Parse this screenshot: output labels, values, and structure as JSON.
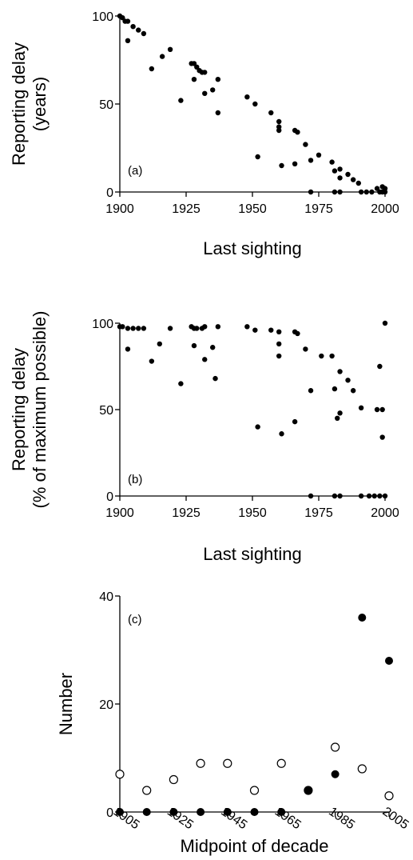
{
  "chart_data": [
    {
      "type": "scatter",
      "panel_label": "(a)",
      "xlabel": "Last sighting",
      "ylabel_lines": [
        "Reporting delay",
        "(years)"
      ],
      "xlim": [
        1900,
        2000
      ],
      "ylim": [
        0,
        100
      ],
      "xticks": [
        "1900",
        "1925",
        "1950",
        "1975",
        "2000"
      ],
      "yticks": [
        "0",
        "50",
        "100"
      ],
      "grid": false,
      "series": [
        {
          "marker": "filled",
          "points": [
            [
              1900,
              100
            ],
            [
              1901,
              99
            ],
            [
              1902,
              97
            ],
            [
              1903,
              97
            ],
            [
              1903,
              86
            ],
            [
              1905,
              94
            ],
            [
              1907,
              92
            ],
            [
              1909,
              90
            ],
            [
              1912,
              70
            ],
            [
              1916,
              77
            ],
            [
              1919,
              81
            ],
            [
              1923,
              52
            ],
            [
              1927,
              73
            ],
            [
              1928,
              73
            ],
            [
              1928,
              64
            ],
            [
              1929,
              71
            ],
            [
              1930,
              69
            ],
            [
              1931,
              68
            ],
            [
              1932,
              56
            ],
            [
              1932,
              68
            ],
            [
              1935,
              58
            ],
            [
              1937,
              64
            ],
            [
              1937,
              45
            ],
            [
              1948,
              54
            ],
            [
              1951,
              50
            ],
            [
              1952,
              20
            ],
            [
              1957,
              45
            ],
            [
              1960,
              40
            ],
            [
              1960,
              37
            ],
            [
              1960,
              35
            ],
            [
              1961,
              15
            ],
            [
              1966,
              35
            ],
            [
              1967,
              34
            ],
            [
              1966,
              16
            ],
            [
              1970,
              27
            ],
            [
              1972,
              18
            ],
            [
              1972,
              0
            ],
            [
              1975,
              21
            ],
            [
              1980,
              17
            ],
            [
              1981,
              12
            ],
            [
              1981,
              0
            ],
            [
              1983,
              13
            ],
            [
              1983,
              8
            ],
            [
              1983,
              0
            ],
            [
              1986,
              10
            ],
            [
              1988,
              7
            ],
            [
              1990,
              5
            ],
            [
              1991,
              0
            ],
            [
              1993,
              0
            ],
            [
              1995,
              0
            ],
            [
              1997,
              2
            ],
            [
              1998,
              0
            ],
            [
              1999,
              3
            ],
            [
              1999,
              0
            ],
            [
              2000,
              2
            ],
            [
              2000,
              0
            ]
          ]
        }
      ]
    },
    {
      "type": "scatter",
      "panel_label": "(b)",
      "xlabel": "Last sighting",
      "ylabel_lines": [
        "Reporting delay",
        "(% of maximum possible)"
      ],
      "xlim": [
        1900,
        2000
      ],
      "ylim": [
        0,
        100
      ],
      "xticks": [
        "1900",
        "1925",
        "1950",
        "1975",
        "2000"
      ],
      "yticks": [
        "0",
        "50",
        "100"
      ],
      "grid": false,
      "series": [
        {
          "marker": "filled",
          "points": [
            [
              1900,
              98
            ],
            [
              1901,
              98
            ],
            [
              1903,
              97
            ],
            [
              1903,
              85
            ],
            [
              1905,
              97
            ],
            [
              1907,
              97
            ],
            [
              1909,
              97
            ],
            [
              1912,
              78
            ],
            [
              1915,
              88
            ],
            [
              1919,
              97
            ],
            [
              1923,
              65
            ],
            [
              1927,
              98
            ],
            [
              1928,
              97
            ],
            [
              1928,
              87
            ],
            [
              1929,
              97
            ],
            [
              1931,
              97
            ],
            [
              1932,
              79
            ],
            [
              1932,
              98
            ],
            [
              1935,
              86
            ],
            [
              1936,
              68
            ],
            [
              1937,
              98
            ],
            [
              1948,
              98
            ],
            [
              1951,
              96
            ],
            [
              1952,
              40
            ],
            [
              1957,
              96
            ],
            [
              1960,
              95
            ],
            [
              1960,
              88
            ],
            [
              1960,
              81
            ],
            [
              1961,
              36
            ],
            [
              1966,
              95
            ],
            [
              1967,
              94
            ],
            [
              1966,
              43
            ],
            [
              1970,
              85
            ],
            [
              1972,
              61
            ],
            [
              1972,
              0
            ],
            [
              1976,
              81
            ],
            [
              1980,
              81
            ],
            [
              1981,
              62
            ],
            [
              1981,
              0
            ],
            [
              1983,
              72
            ],
            [
              1983,
              48
            ],
            [
              1982,
              45
            ],
            [
              1983,
              0
            ],
            [
              1986,
              67
            ],
            [
              1988,
              61
            ],
            [
              1991,
              51
            ],
            [
              1991,
              0
            ],
            [
              1994,
              0
            ],
            [
              1997,
              50
            ],
            [
              1998,
              75
            ],
            [
              1998,
              0
            ],
            [
              1999,
              34
            ],
            [
              1999,
              50
            ],
            [
              2000,
              100
            ],
            [
              2000,
              0
            ],
            [
              1996,
              0
            ]
          ]
        }
      ]
    },
    {
      "type": "scatter",
      "panel_label": "(c)",
      "xlabel": "Midpoint of decade",
      "ylabel_lines": [
        "Number"
      ],
      "xlim": [
        1905,
        2005
      ],
      "ylim": [
        0,
        40
      ],
      "xticks": [
        "1905",
        "1925",
        "1945",
        "1965",
        "1985",
        "2005"
      ],
      "yticks": [
        "0",
        "20",
        "40"
      ],
      "grid": false,
      "series": [
        {
          "marker": "open",
          "x": [
            1905,
            1915,
            1925,
            1935,
            1945,
            1955,
            1965,
            1975,
            1985,
            1995,
            2005
          ],
          "values": [
            7,
            4,
            6,
            9,
            9,
            4,
            9,
            4,
            12,
            8,
            3
          ]
        },
        {
          "marker": "filled",
          "x": [
            1905,
            1915,
            1925,
            1935,
            1945,
            1955,
            1965,
            1975,
            1985,
            1995,
            2005
          ],
          "values": [
            0,
            0,
            0,
            0,
            0,
            0,
            0,
            4,
            7,
            36,
            28
          ]
        }
      ]
    }
  ]
}
